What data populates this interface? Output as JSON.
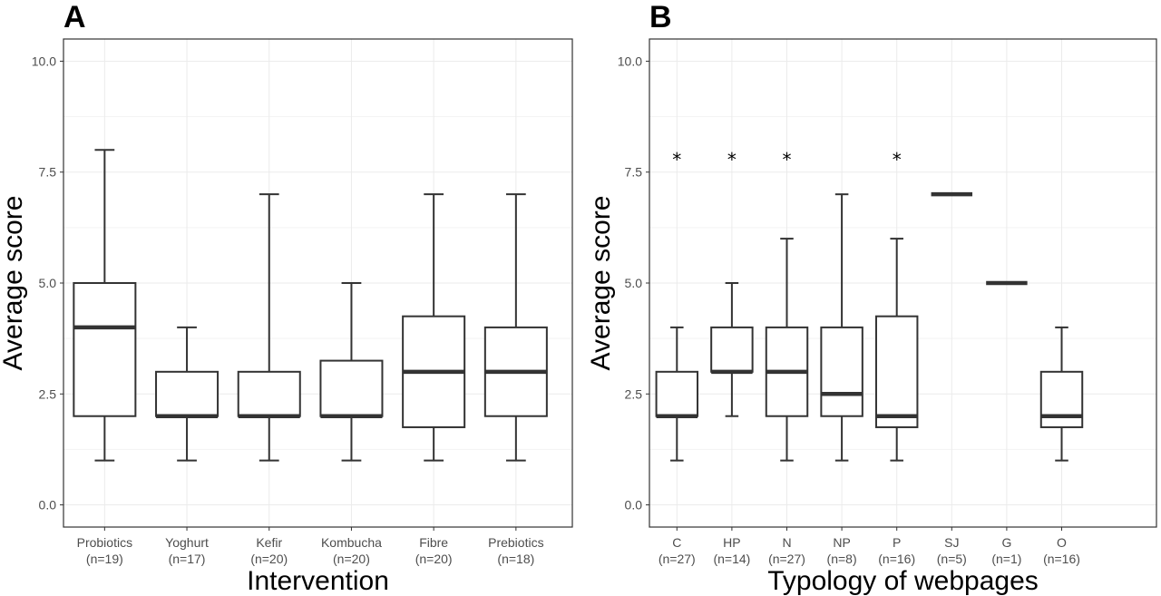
{
  "chart_data": [
    {
      "type": "box",
      "panel": "A",
      "xlabel": "Intervention",
      "ylabel": "Average score",
      "ylim": [
        -0.5,
        10.5
      ],
      "yticks": [
        "0.0",
        "2.5",
        "5.0",
        "7.5",
        "10.0"
      ],
      "grid": true,
      "categories": [
        {
          "name": "Probiotics",
          "n": "(n=19)",
          "min": 1,
          "q1": 2,
          "median": 4,
          "q3": 5,
          "max": 8,
          "star": false
        },
        {
          "name": "Yoghurt",
          "n": "(n=17)",
          "min": 1,
          "q1": 2,
          "median": 2,
          "q3": 3,
          "max": 4,
          "star": false
        },
        {
          "name": "Kefir",
          "n": "(n=20)",
          "min": 1,
          "q1": 2,
          "median": 2,
          "q3": 3,
          "max": 7,
          "star": false
        },
        {
          "name": "Kombucha",
          "n": "(n=20)",
          "min": 1,
          "q1": 2,
          "median": 2,
          "q3": 3.25,
          "max": 5,
          "star": false
        },
        {
          "name": "Fibre",
          "n": "(n=20)",
          "min": 1,
          "q1": 1.75,
          "median": 3,
          "q3": 4.25,
          "max": 7,
          "star": false
        },
        {
          "name": "Prebiotics",
          "n": "(n=18)",
          "min": 1,
          "q1": 2,
          "median": 3,
          "q3": 4,
          "max": 7,
          "star": false
        }
      ]
    },
    {
      "type": "box",
      "panel": "B",
      "xlabel": "Typology of webpages",
      "ylabel": "Average score",
      "ylim": [
        -0.5,
        10.5
      ],
      "yticks": [
        "0.0",
        "2.5",
        "5.0",
        "7.5",
        "10.0"
      ],
      "grid": true,
      "star_symbol": "*",
      "star_value": 7.9,
      "categories": [
        {
          "name": "C",
          "n": "(n=27)",
          "min": 1,
          "q1": 2,
          "median": 2,
          "q3": 3,
          "max": 4,
          "star": true
        },
        {
          "name": "HP",
          "n": "(n=14)",
          "min": 2,
          "q1": 3,
          "median": 3,
          "q3": 4,
          "max": 5,
          "star": true
        },
        {
          "name": "N",
          "n": "(n=27)",
          "min": 1,
          "q1": 2,
          "median": 3,
          "q3": 4,
          "max": 6,
          "star": true
        },
        {
          "name": "NP",
          "n": "(n=8)",
          "min": 1,
          "q1": 2,
          "median": 2.5,
          "q3": 4,
          "max": 7,
          "star": false
        },
        {
          "name": "P",
          "n": "(n=16)",
          "min": 1,
          "q1": 1.75,
          "median": 2,
          "q3": 4.25,
          "max": 6,
          "star": true
        },
        {
          "name": "SJ",
          "n": "(n=5)",
          "min": 7,
          "q1": 7,
          "median": 7,
          "q3": 7,
          "max": 7,
          "star": false
        },
        {
          "name": "G",
          "n": "(n=1)",
          "min": 5,
          "q1": 5,
          "median": 5,
          "q3": 5,
          "max": 5,
          "star": false
        },
        {
          "name": "O",
          "n": "(n=16)",
          "min": 1,
          "q1": 1.75,
          "median": 2,
          "q3": 3,
          "max": 4,
          "star": false
        }
      ]
    }
  ]
}
